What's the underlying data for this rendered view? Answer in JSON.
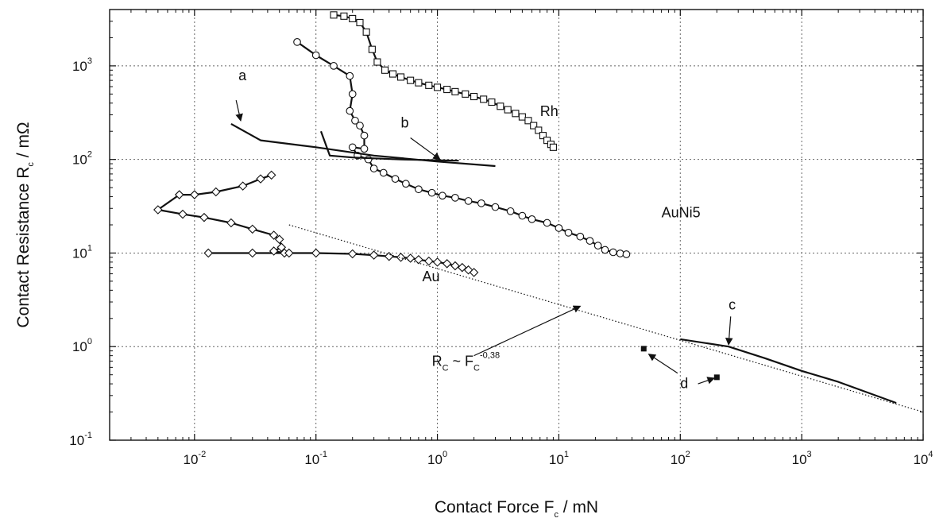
{
  "chart_data": {
    "type": "scatter",
    "x_scale": "log",
    "y_scale": "log",
    "xlim": [
      0.002,
      10000
    ],
    "ylim": [
      0.1,
      4000
    ],
    "grid": true,
    "xlabel": {
      "text": "Contact Force F",
      "sub": "c",
      "unit": " / mN"
    },
    "ylabel": {
      "text": "Contact Resistance R",
      "sub": "c",
      "unit": " / mΩ"
    },
    "x_ticks": [
      {
        "value": 0.01,
        "base": "10",
        "exp": "-2"
      },
      {
        "value": 0.1,
        "base": "10",
        "exp": "-1"
      },
      {
        "value": 1,
        "base": "10",
        "exp": "0"
      },
      {
        "value": 10,
        "base": "10",
        "exp": "1"
      },
      {
        "value": 100,
        "base": "10",
        "exp": "2"
      },
      {
        "value": 1000,
        "base": "10",
        "exp": "3"
      },
      {
        "value": 10000,
        "base": "10",
        "exp": "4"
      }
    ],
    "y_ticks": [
      {
        "value": 0.1,
        "base": "10",
        "exp": "-1"
      },
      {
        "value": 1,
        "base": "10",
        "exp": "0"
      },
      {
        "value": 10,
        "base": "10",
        "exp": "1"
      },
      {
        "value": 100,
        "base": "10",
        "exp": "2"
      },
      {
        "value": 1000,
        "base": "10",
        "exp": "3"
      }
    ],
    "series": [
      {
        "name": "Rh",
        "marker": "square",
        "line": true,
        "points": [
          [
            0.14,
            3500
          ],
          [
            0.17,
            3400
          ],
          [
            0.2,
            3200
          ],
          [
            0.23,
            2900
          ],
          [
            0.26,
            2300
          ],
          [
            0.29,
            1500
          ],
          [
            0.32,
            1100
          ],
          [
            0.37,
            900
          ],
          [
            0.43,
            820
          ],
          [
            0.5,
            760
          ],
          [
            0.6,
            700
          ],
          [
            0.7,
            660
          ],
          [
            0.85,
            620
          ],
          [
            1.0,
            590
          ],
          [
            1.2,
            560
          ],
          [
            1.4,
            530
          ],
          [
            1.7,
            500
          ],
          [
            2.0,
            470
          ],
          [
            2.4,
            440
          ],
          [
            2.8,
            410
          ],
          [
            3.3,
            370
          ],
          [
            3.8,
            340
          ],
          [
            4.4,
            310
          ],
          [
            5.0,
            285
          ],
          [
            5.6,
            260
          ],
          [
            6.2,
            230
          ],
          [
            6.8,
            205
          ],
          [
            7.4,
            180
          ],
          [
            8.0,
            160
          ],
          [
            8.6,
            145
          ],
          [
            9.0,
            135
          ]
        ]
      },
      {
        "name": "AuNi5",
        "marker": "circle",
        "line": true,
        "points": [
          [
            0.07,
            1800
          ],
          [
            0.1,
            1300
          ],
          [
            0.14,
            1000
          ],
          [
            0.19,
            780
          ],
          [
            0.2,
            500
          ],
          [
            0.19,
            330
          ],
          [
            0.21,
            260
          ],
          [
            0.23,
            230
          ],
          [
            0.25,
            180
          ],
          [
            0.25,
            130
          ],
          [
            0.2,
            135
          ],
          [
            0.22,
            110
          ],
          [
            0.27,
            100
          ],
          [
            0.3,
            80
          ],
          [
            0.36,
            72
          ],
          [
            0.45,
            62
          ],
          [
            0.55,
            55
          ],
          [
            0.7,
            48
          ],
          [
            0.9,
            44
          ],
          [
            1.1,
            41
          ],
          [
            1.4,
            39
          ],
          [
            1.8,
            36
          ],
          [
            2.3,
            34
          ],
          [
            3,
            31
          ],
          [
            4,
            28
          ],
          [
            5,
            25
          ],
          [
            6,
            23
          ],
          [
            8,
            21
          ],
          [
            10,
            18.5
          ],
          [
            12,
            16.5
          ],
          [
            15,
            15
          ],
          [
            18,
            13.5
          ],
          [
            21,
            12
          ],
          [
            24,
            10.8
          ],
          [
            28,
            10.2
          ],
          [
            32,
            9.9
          ],
          [
            36,
            9.7
          ]
        ]
      },
      {
        "name": "Au",
        "marker": "diamond",
        "line": true,
        "points": [
          [
            0.043,
            68
          ],
          [
            0.035,
            62
          ],
          [
            0.025,
            52
          ],
          [
            0.015,
            45
          ],
          [
            0.01,
            42
          ],
          [
            0.0075,
            42
          ],
          [
            0.005,
            29
          ],
          [
            0.008,
            26
          ],
          [
            0.012,
            24
          ],
          [
            0.02,
            21
          ],
          [
            0.03,
            18
          ],
          [
            0.045,
            15.5
          ],
          [
            0.05,
            14
          ],
          [
            0.052,
            11.5
          ],
          [
            0.045,
            10.5
          ],
          [
            0.055,
            10
          ],
          [
            0.013,
            10
          ],
          [
            0.03,
            10
          ],
          [
            0.06,
            10
          ],
          [
            0.1,
            10
          ],
          [
            0.2,
            9.8
          ],
          [
            0.3,
            9.5
          ],
          [
            0.4,
            9.2
          ],
          [
            0.5,
            9
          ],
          [
            0.6,
            8.8
          ],
          [
            0.7,
            8.5
          ],
          [
            0.85,
            8.2
          ],
          [
            1.0,
            8
          ],
          [
            1.2,
            7.7
          ],
          [
            1.4,
            7.3
          ],
          [
            1.6,
            7
          ],
          [
            1.8,
            6.6
          ],
          [
            2.0,
            6.2
          ]
        ]
      },
      {
        "name": "a",
        "marker": "none",
        "line": true,
        "points": [
          [
            0.02,
            240
          ],
          [
            0.035,
            160
          ],
          [
            0.1,
            135
          ],
          [
            0.3,
            110
          ],
          [
            1.0,
            95
          ],
          [
            3.0,
            85
          ]
        ]
      },
      {
        "name": "b",
        "marker": "none",
        "line": true,
        "points": [
          [
            0.11,
            200
          ],
          [
            0.13,
            110
          ],
          [
            0.2,
            105
          ],
          [
            0.5,
            100
          ],
          [
            1.0,
            98
          ],
          [
            1.5,
            97
          ]
        ]
      },
      {
        "name": "c",
        "marker": "none",
        "line": true,
        "points": [
          [
            100,
            1.2
          ],
          [
            250,
            1.0
          ],
          [
            500,
            0.75
          ],
          [
            1000,
            0.55
          ],
          [
            2000,
            0.42
          ],
          [
            6000,
            0.25
          ]
        ]
      },
      {
        "name": "fit",
        "marker": "none",
        "line": true,
        "dotted": true,
        "points": [
          [
            0.06,
            20
          ],
          [
            10000,
            0.2
          ]
        ]
      },
      {
        "name": "d",
        "marker": "filled-square",
        "line": false,
        "points": [
          [
            50,
            0.95
          ],
          [
            200,
            0.47
          ]
        ]
      }
    ],
    "annotations": [
      {
        "id": "rh",
        "text": "Rh",
        "x": 7,
        "y": 290
      },
      {
        "id": "auni5",
        "text": "AuNi5",
        "x": 70,
        "y": 24
      },
      {
        "id": "au",
        "text": "Au",
        "x": 0.75,
        "y": 5
      },
      {
        "id": "a",
        "text": "a",
        "x": 0.023,
        "y": 700
      },
      {
        "id": "b",
        "text": "b",
        "x": 0.5,
        "y": 220
      },
      {
        "id": "c",
        "text": "c",
        "x": 250,
        "y": 2.5
      },
      {
        "id": "d",
        "text": "d",
        "x": 100,
        "y": 0.36
      },
      {
        "id": "fit",
        "text": "R",
        "sub1": "C",
        "mid": " ~ F",
        "sub2": "C",
        "sup": "-0,38",
        "x": 0.9,
        "y": 0.62
      }
    ],
    "arrows": [
      {
        "id": "arrow-a",
        "from": [
          0.022,
          430
        ],
        "to": [
          0.024,
          260
        ]
      },
      {
        "id": "arrow-b",
        "from": [
          0.6,
          170
        ],
        "to": [
          1.05,
          100
        ]
      },
      {
        "id": "arrow-c",
        "from": [
          260,
          2.1
        ],
        "to": [
          250,
          1.05
        ]
      },
      {
        "id": "arrow-fit",
        "from": [
          2.0,
          0.8
        ],
        "to": [
          15,
          2.7
        ]
      },
      {
        "id": "arrow-d1",
        "from": [
          95,
          0.52
        ],
        "to": [
          55,
          0.83
        ]
      },
      {
        "id": "arrow-d2",
        "from": [
          140,
          0.4
        ],
        "to": [
          190,
          0.46
        ]
      }
    ]
  }
}
